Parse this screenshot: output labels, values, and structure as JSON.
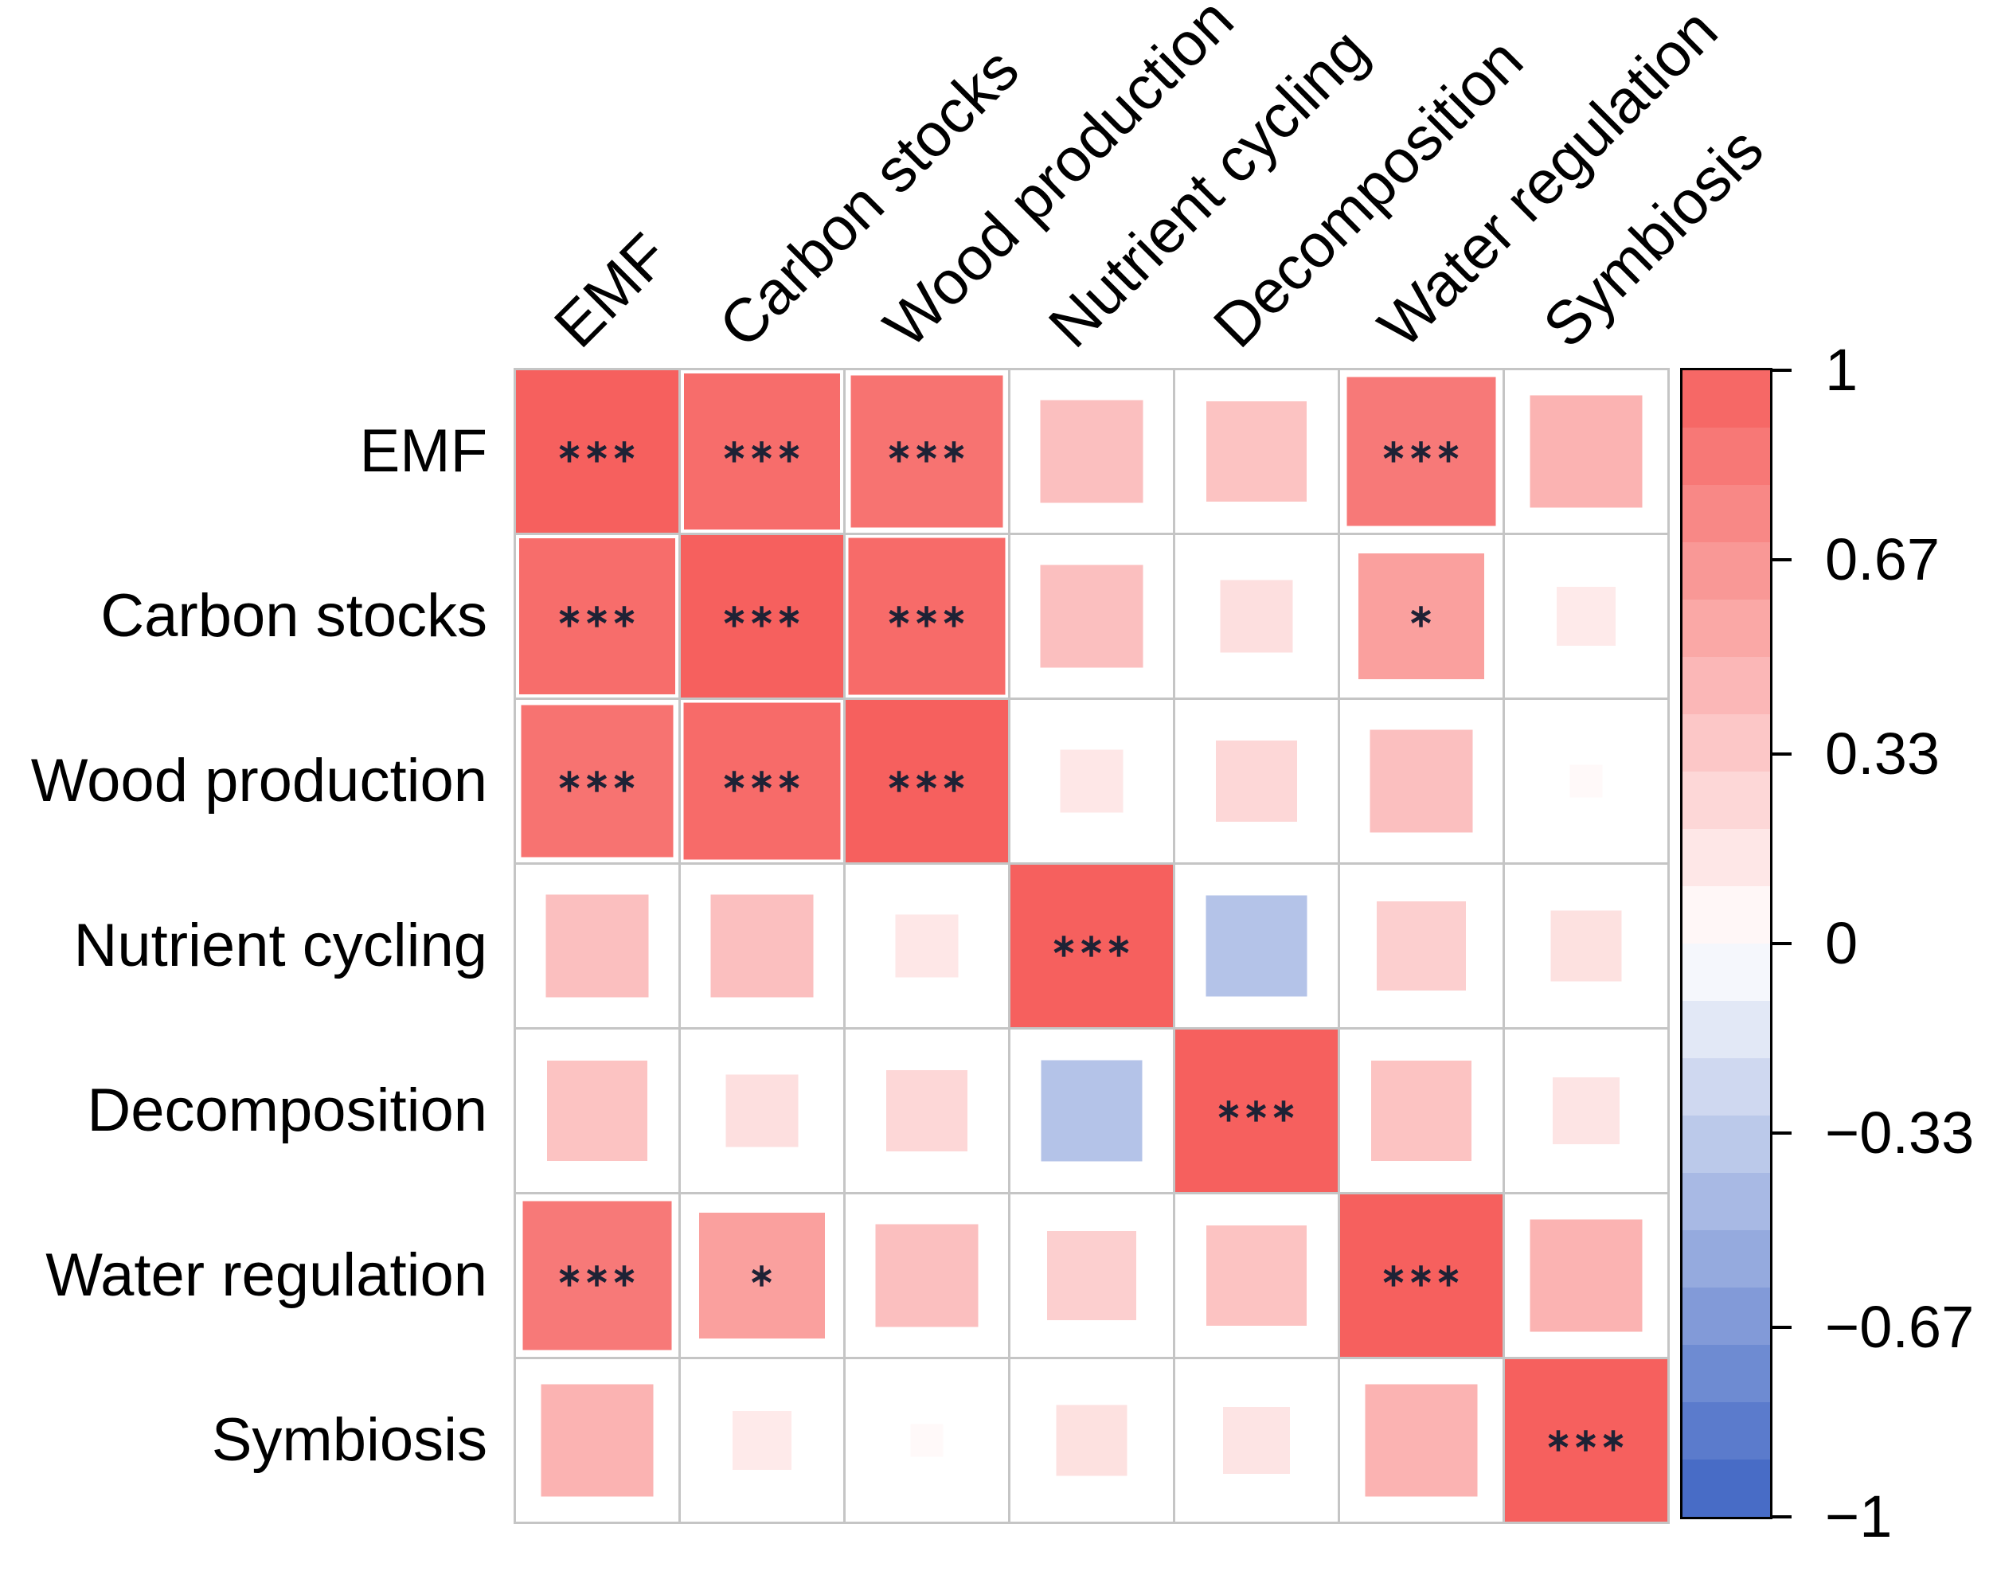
{
  "chart_data": {
    "type": "heatmap",
    "subtype": "correlation-matrix",
    "title": "",
    "variables": [
      "EMF",
      "Carbon stocks",
      "Wood production",
      "Nutrient cycling",
      "Decomposition",
      "Water regulation",
      "Symbiosis"
    ],
    "matrix": [
      [
        1.0,
        0.92,
        0.88,
        0.4,
        0.38,
        0.84,
        0.48
      ],
      [
        0.92,
        1.0,
        0.93,
        0.4,
        0.2,
        0.6,
        0.13
      ],
      [
        0.88,
        0.93,
        1.0,
        0.15,
        0.25,
        0.4,
        0.04
      ],
      [
        0.4,
        0.4,
        0.15,
        1.0,
        -0.39,
        0.3,
        0.19
      ],
      [
        0.38,
        0.2,
        0.25,
        -0.39,
        1.0,
        0.38,
        0.17
      ],
      [
        0.84,
        0.6,
        0.4,
        0.3,
        0.38,
        1.0,
        0.48
      ],
      [
        0.48,
        0.13,
        0.04,
        0.19,
        0.17,
        0.48,
        1.0
      ]
    ],
    "significance": [
      [
        "***",
        "***",
        "***",
        "",
        "",
        "***",
        ""
      ],
      [
        "***",
        "***",
        "***",
        "",
        "",
        "*",
        ""
      ],
      [
        "***",
        "***",
        "***",
        "",
        "",
        "",
        ""
      ],
      [
        "",
        "",
        "",
        "***",
        "",
        "",
        ""
      ],
      [
        "",
        "",
        "",
        "",
        "***",
        "",
        ""
      ],
      [
        "***",
        "*",
        "",
        "",
        "",
        "***",
        ""
      ],
      [
        "",
        "",
        "",
        "",
        "",
        "",
        "***"
      ]
    ],
    "value_range": [
      -1,
      1
    ],
    "size_encoding": "square side proportional to sqrt(|r|)",
    "grid_on": true,
    "legend_position": "right",
    "colorbar": {
      "tick_labels": [
        "1",
        "0.67",
        "0.33",
        "0",
        "−0.33",
        "−0.67",
        "−1"
      ],
      "tick_values": [
        1,
        0.67,
        0.33,
        0,
        -0.33,
        -0.67,
        -1
      ],
      "segments": 20
    },
    "colors": {
      "positive_max": "#f6605e",
      "negative_max": "#3e64c3",
      "zero": "#ffffff",
      "grid_line": "#c5c5c5",
      "stars": "#1e2235",
      "labels": "#000000",
      "colorbar_border": "#000000",
      "background": "#ffffff"
    }
  }
}
